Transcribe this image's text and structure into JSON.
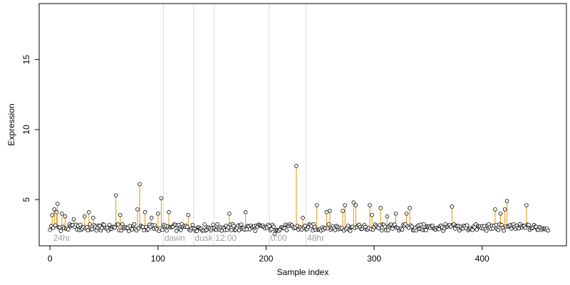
{
  "chart_data": {
    "type": "scatter",
    "xlabel": "Sample index",
    "ylabel": "Expression",
    "xlim": [
      -10,
      478
    ],
    "ylim": [
      1.7,
      19.0
    ],
    "x_ticks": [
      0,
      100,
      200,
      300,
      400
    ],
    "x_tick_labels": [
      "0",
      "100",
      "200",
      "300",
      "400"
    ],
    "y_ticks": [
      5,
      10,
      15
    ],
    "y_tick_labels": [
      "5",
      "10",
      "15"
    ],
    "baseline": 3.0,
    "n_points": 462,
    "separators": [
      105,
      133,
      152,
      203,
      237
    ],
    "segment_labels": [
      {
        "x": 3,
        "text": "24hr"
      },
      {
        "x": 106,
        "text": "dawn"
      },
      {
        "x": 134,
        "text": "dusk"
      },
      {
        "x": 153,
        "text": "12:00"
      },
      {
        "x": 204,
        "text": "0:00"
      },
      {
        "x": 238,
        "text": "48hr"
      }
    ],
    "peaks": [
      {
        "x": 2,
        "y": 3.9
      },
      {
        "x": 4,
        "y": 4.3
      },
      {
        "x": 6,
        "y": 4.1
      },
      {
        "x": 7,
        "y": 4.7
      },
      {
        "x": 11,
        "y": 4.0
      },
      {
        "x": 14,
        "y": 3.8
      },
      {
        "x": 22,
        "y": 3.6
      },
      {
        "x": 32,
        "y": 3.8
      },
      {
        "x": 36,
        "y": 4.1
      },
      {
        "x": 40,
        "y": 3.7
      },
      {
        "x": 61,
        "y": 5.3
      },
      {
        "x": 65,
        "y": 3.9
      },
      {
        "x": 81,
        "y": 4.3
      },
      {
        "x": 83,
        "y": 6.1
      },
      {
        "x": 88,
        "y": 4.1
      },
      {
        "x": 94,
        "y": 3.7
      },
      {
        "x": 100,
        "y": 4.0
      },
      {
        "x": 103,
        "y": 5.1
      },
      {
        "x": 110,
        "y": 4.1
      },
      {
        "x": 128,
        "y": 3.9
      },
      {
        "x": 166,
        "y": 4.0
      },
      {
        "x": 181,
        "y": 4.1
      },
      {
        "x": 228,
        "y": 7.4
      },
      {
        "x": 234,
        "y": 3.7
      },
      {
        "x": 247,
        "y": 4.6
      },
      {
        "x": 256,
        "y": 4.1
      },
      {
        "x": 259,
        "y": 4.2
      },
      {
        "x": 271,
        "y": 4.2
      },
      {
        "x": 273,
        "y": 4.6
      },
      {
        "x": 281,
        "y": 4.8
      },
      {
        "x": 283,
        "y": 4.6
      },
      {
        "x": 296,
        "y": 4.6
      },
      {
        "x": 298,
        "y": 3.9
      },
      {
        "x": 306,
        "y": 4.4
      },
      {
        "x": 312,
        "y": 3.8
      },
      {
        "x": 320,
        "y": 4.0
      },
      {
        "x": 330,
        "y": 4.0
      },
      {
        "x": 333,
        "y": 4.4
      },
      {
        "x": 372,
        "y": 4.5
      },
      {
        "x": 412,
        "y": 4.3
      },
      {
        "x": 417,
        "y": 4.0
      },
      {
        "x": 421,
        "y": 4.3
      },
      {
        "x": 423,
        "y": 4.9
      },
      {
        "x": 441,
        "y": 4.6
      }
    ],
    "gap_points": [
      {
        "x": 208,
        "y": 2.55
      }
    ]
  },
  "colors": {
    "point_stroke": "#000000",
    "point_fill": "#ffffff",
    "peak_stem": "#e69500",
    "trough_stem": "#8fa8cc",
    "separator": "#dcdcdc",
    "segment_label": "#a0a0a0"
  }
}
